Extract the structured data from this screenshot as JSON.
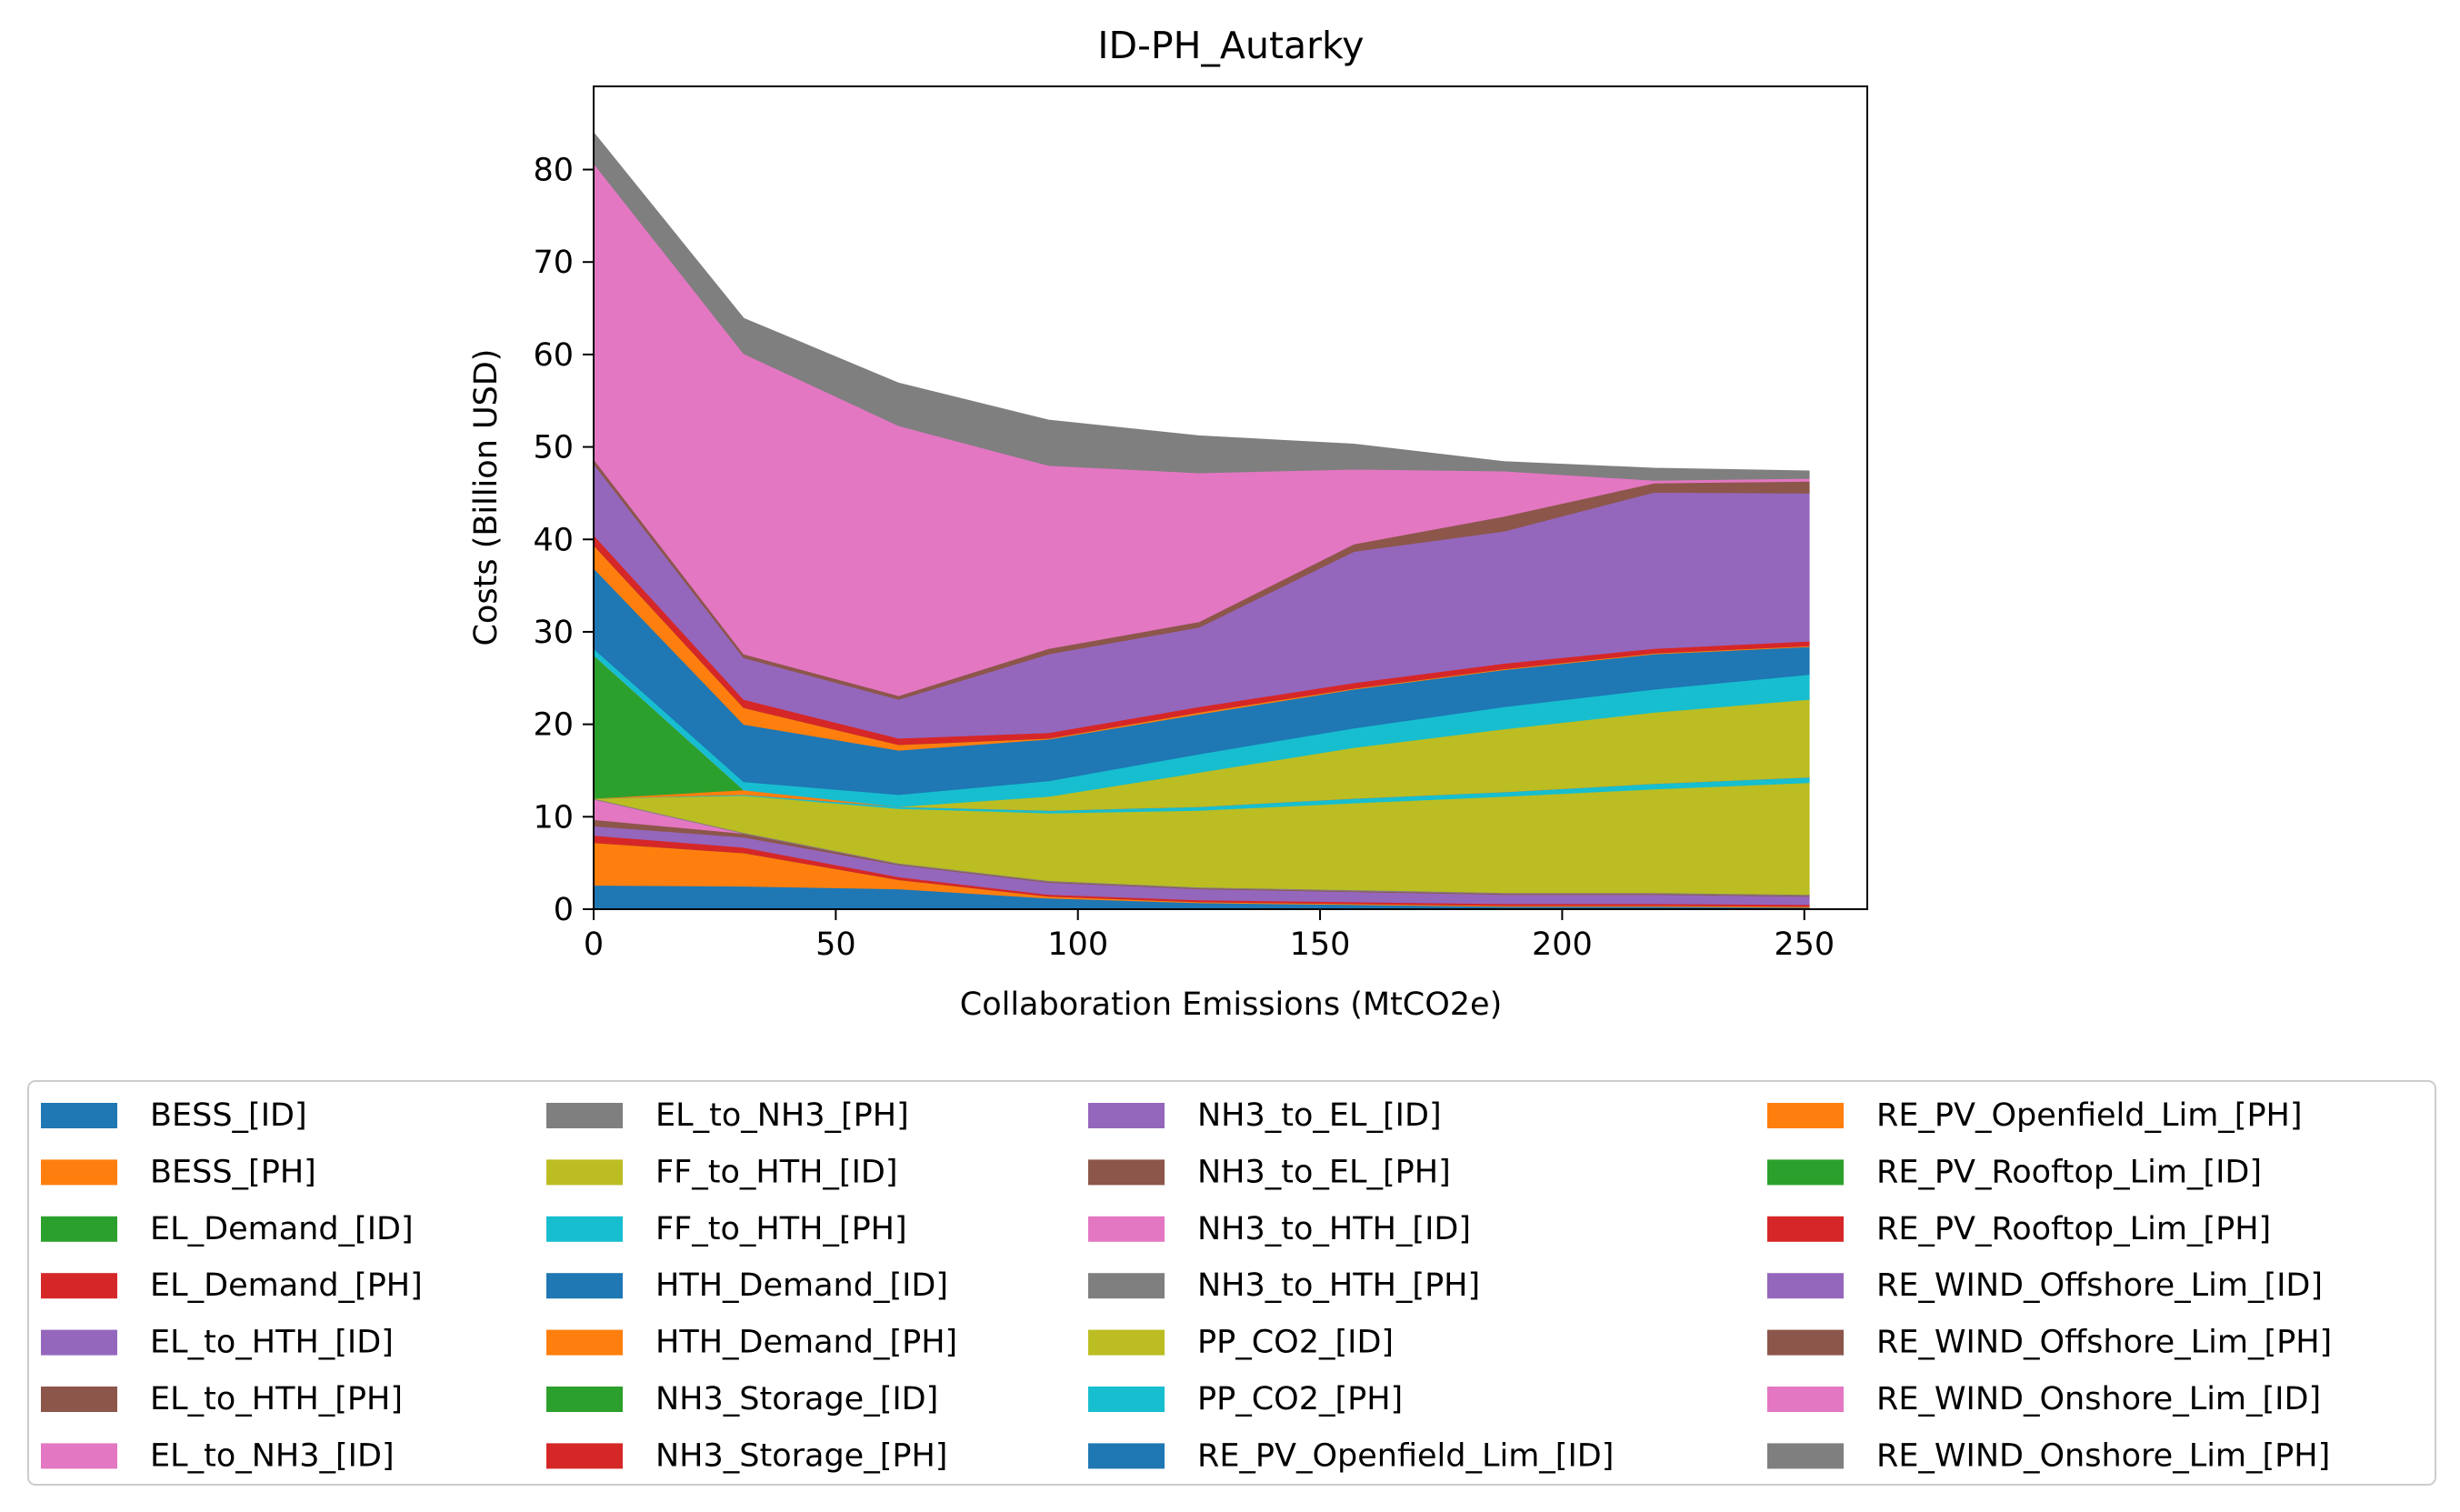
{
  "chart_data": {
    "type": "area",
    "stacked": true,
    "title": "ID-PH_Autarky",
    "xlabel": "Collaboration Emissions (MtCO2e)",
    "ylabel": "Costs (Billion USD)",
    "xlim": [
      0,
      263
    ],
    "ylim": [
      0,
      89
    ],
    "xticks": [
      0,
      50,
      100,
      150,
      200,
      250
    ],
    "yticks": [
      0,
      10,
      20,
      30,
      40,
      50,
      60,
      70,
      80
    ],
    "grid": false,
    "legend_position": "below",
    "x": [
      0,
      31,
      63,
      94,
      125,
      157,
      188,
      219,
      251
    ],
    "series": [
      {
        "name": "BESS_[ID]",
        "color": "#1f77b4",
        "values": [
          2.6,
          2.5,
          2.2,
          1.2,
          0.7,
          0.5,
          0.3,
          0.3,
          0.2
        ]
      },
      {
        "name": "BESS_[PH]",
        "color": "#ff7f0e",
        "values": [
          4.6,
          3.6,
          1.0,
          0.2,
          0.1,
          0.1,
          0.1,
          0.1,
          0.1
        ]
      },
      {
        "name": "EL_Demand_[ID]",
        "color": "#2ca02c",
        "values": [
          0.0,
          0.0,
          0.0,
          0.0,
          0.0,
          0.0,
          0.0,
          0.0,
          0.0
        ]
      },
      {
        "name": "EL_Demand_[PH]",
        "color": "#d62728",
        "values": [
          0.8,
          0.6,
          0.3,
          0.2,
          0.2,
          0.2,
          0.2,
          0.2,
          0.2
        ]
      },
      {
        "name": "EL_to_HTH_[ID]",
        "color": "#9467bd",
        "values": [
          1.0,
          1.1,
          1.3,
          1.3,
          1.2,
          1.1,
          1.0,
          1.0,
          0.9
        ]
      },
      {
        "name": "EL_to_HTH_[PH]",
        "color": "#8c564b",
        "values": [
          0.7,
          0.4,
          0.1,
          0.1,
          0.1,
          0.1,
          0.1,
          0.1,
          0.1
        ]
      },
      {
        "name": "EL_to_NH3_[ID]",
        "color": "#e377c2",
        "values": [
          2.2,
          0.0,
          0.0,
          0.0,
          0.0,
          0.0,
          0.0,
          0.0,
          0.0
        ]
      },
      {
        "name": "EL_to_NH3_[PH]",
        "color": "#7f7f7f",
        "values": [
          0.1,
          0.1,
          0.1,
          0.1,
          0.1,
          0.1,
          0.1,
          0.1,
          0.1
        ]
      },
      {
        "name": "FF_to_HTH_[ID]",
        "color": "#bcbd22",
        "values": [
          0.0,
          4.0,
          5.9,
          7.3,
          8.3,
          9.4,
          10.4,
          11.2,
          12.1
        ]
      },
      {
        "name": "FF_to_HTH_[PH]",
        "color": "#17becf",
        "values": [
          0.0,
          0.1,
          0.2,
          0.3,
          0.4,
          0.5,
          0.5,
          0.6,
          0.6
        ]
      },
      {
        "name": "HTH_Demand_[ID]",
        "color": "#1f77b4",
        "values": [
          0.0,
          0.0,
          0.0,
          0.0,
          0.0,
          0.0,
          0.0,
          0.0,
          0.0
        ]
      },
      {
        "name": "HTH_Demand_[PH]",
        "color": "#ff7f0e",
        "values": [
          0.0,
          0.5,
          0.0,
          0.0,
          0.0,
          0.0,
          0.0,
          0.0,
          0.0
        ]
      },
      {
        "name": "NH3_Storage_[ID]",
        "color": "#2ca02c",
        "values": [
          15.5,
          0.0,
          0.0,
          0.0,
          0.0,
          0.0,
          0.0,
          0.0,
          0.0
        ]
      },
      {
        "name": "NH3_Storage_[PH]",
        "color": "#d62728",
        "values": [
          0.0,
          0.0,
          0.0,
          0.0,
          0.0,
          0.0,
          0.0,
          0.0,
          0.0
        ]
      },
      {
        "name": "NH3_to_EL_[ID]",
        "color": "#9467bd",
        "values": [
          0.0,
          0.0,
          0.0,
          0.0,
          0.0,
          0.0,
          0.0,
          0.0,
          0.0
        ]
      },
      {
        "name": "NH3_to_EL_[PH]",
        "color": "#8c564b",
        "values": [
          0.0,
          0.0,
          0.0,
          0.0,
          0.0,
          0.0,
          0.0,
          0.0,
          0.0
        ]
      },
      {
        "name": "NH3_to_HTH_[ID]",
        "color": "#e377c2",
        "values": [
          0.0,
          0.0,
          0.0,
          0.0,
          0.0,
          0.0,
          0.0,
          0.0,
          0.0
        ]
      },
      {
        "name": "NH3_to_HTH_[PH]",
        "color": "#7f7f7f",
        "values": [
          0.0,
          0.0,
          0.0,
          0.0,
          0.0,
          0.0,
          0.0,
          0.0,
          0.0
        ]
      },
      {
        "name": "PP_CO2_[ID]",
        "color": "#bcbd22",
        "values": [
          0.0,
          0.0,
          0.0,
          1.5,
          3.7,
          5.5,
          6.8,
          7.7,
          8.4
        ]
      },
      {
        "name": "PP_CO2_[PH]",
        "color": "#17becf",
        "values": [
          0.7,
          0.9,
          1.3,
          1.7,
          2.0,
          2.1,
          2.4,
          2.5,
          2.7
        ]
      },
      {
        "name": "RE_PV_Openfield_Lim_[ID]",
        "color": "#1f77b4",
        "values": [
          8.7,
          6.2,
          4.8,
          4.5,
          4.3,
          4.2,
          4.0,
          3.8,
          3.0
        ]
      },
      {
        "name": "RE_PV_Openfield_Lim_[PH]",
        "color": "#ff7f0e",
        "values": [
          2.5,
          1.8,
          0.6,
          0.1,
          0.2,
          0.1,
          0.1,
          0.1,
          0.1
        ]
      },
      {
        "name": "RE_PV_Rooftop_Lim_[ID]",
        "color": "#2ca02c",
        "values": [
          0.0,
          0.0,
          0.0,
          0.0,
          0.0,
          0.0,
          0.0,
          0.0,
          0.0
        ]
      },
      {
        "name": "RE_PV_Rooftop_Lim_[PH]",
        "color": "#d62728",
        "values": [
          1.1,
          0.9,
          0.7,
          0.6,
          0.6,
          0.6,
          0.6,
          0.5,
          0.5
        ]
      },
      {
        "name": "RE_WIND_Offshore_Lim_[ID]",
        "color": "#9467bd",
        "values": [
          7.7,
          4.5,
          4.2,
          8.5,
          8.6,
          14.2,
          14.3,
          16.9,
          16.0
        ]
      },
      {
        "name": "RE_WIND_Offshore_Lim_[PH]",
        "color": "#8c564b",
        "values": [
          0.5,
          0.4,
          0.4,
          0.6,
          0.6,
          0.8,
          1.6,
          1.0,
          1.3
        ]
      },
      {
        "name": "RE_WIND_Onshore_Lim_[ID]",
        "color": "#e377c2",
        "values": [
          32.0,
          32.5,
          29.2,
          19.8,
          16.1,
          8.1,
          4.9,
          0.3,
          0.3
        ]
      },
      {
        "name": "RE_WIND_Onshore_Lim_[PH]",
        "color": "#7f7f7f",
        "values": [
          3.3,
          3.8,
          4.6,
          4.9,
          4.0,
          2.7,
          1.0,
          1.3,
          0.8
        ]
      }
    ]
  }
}
